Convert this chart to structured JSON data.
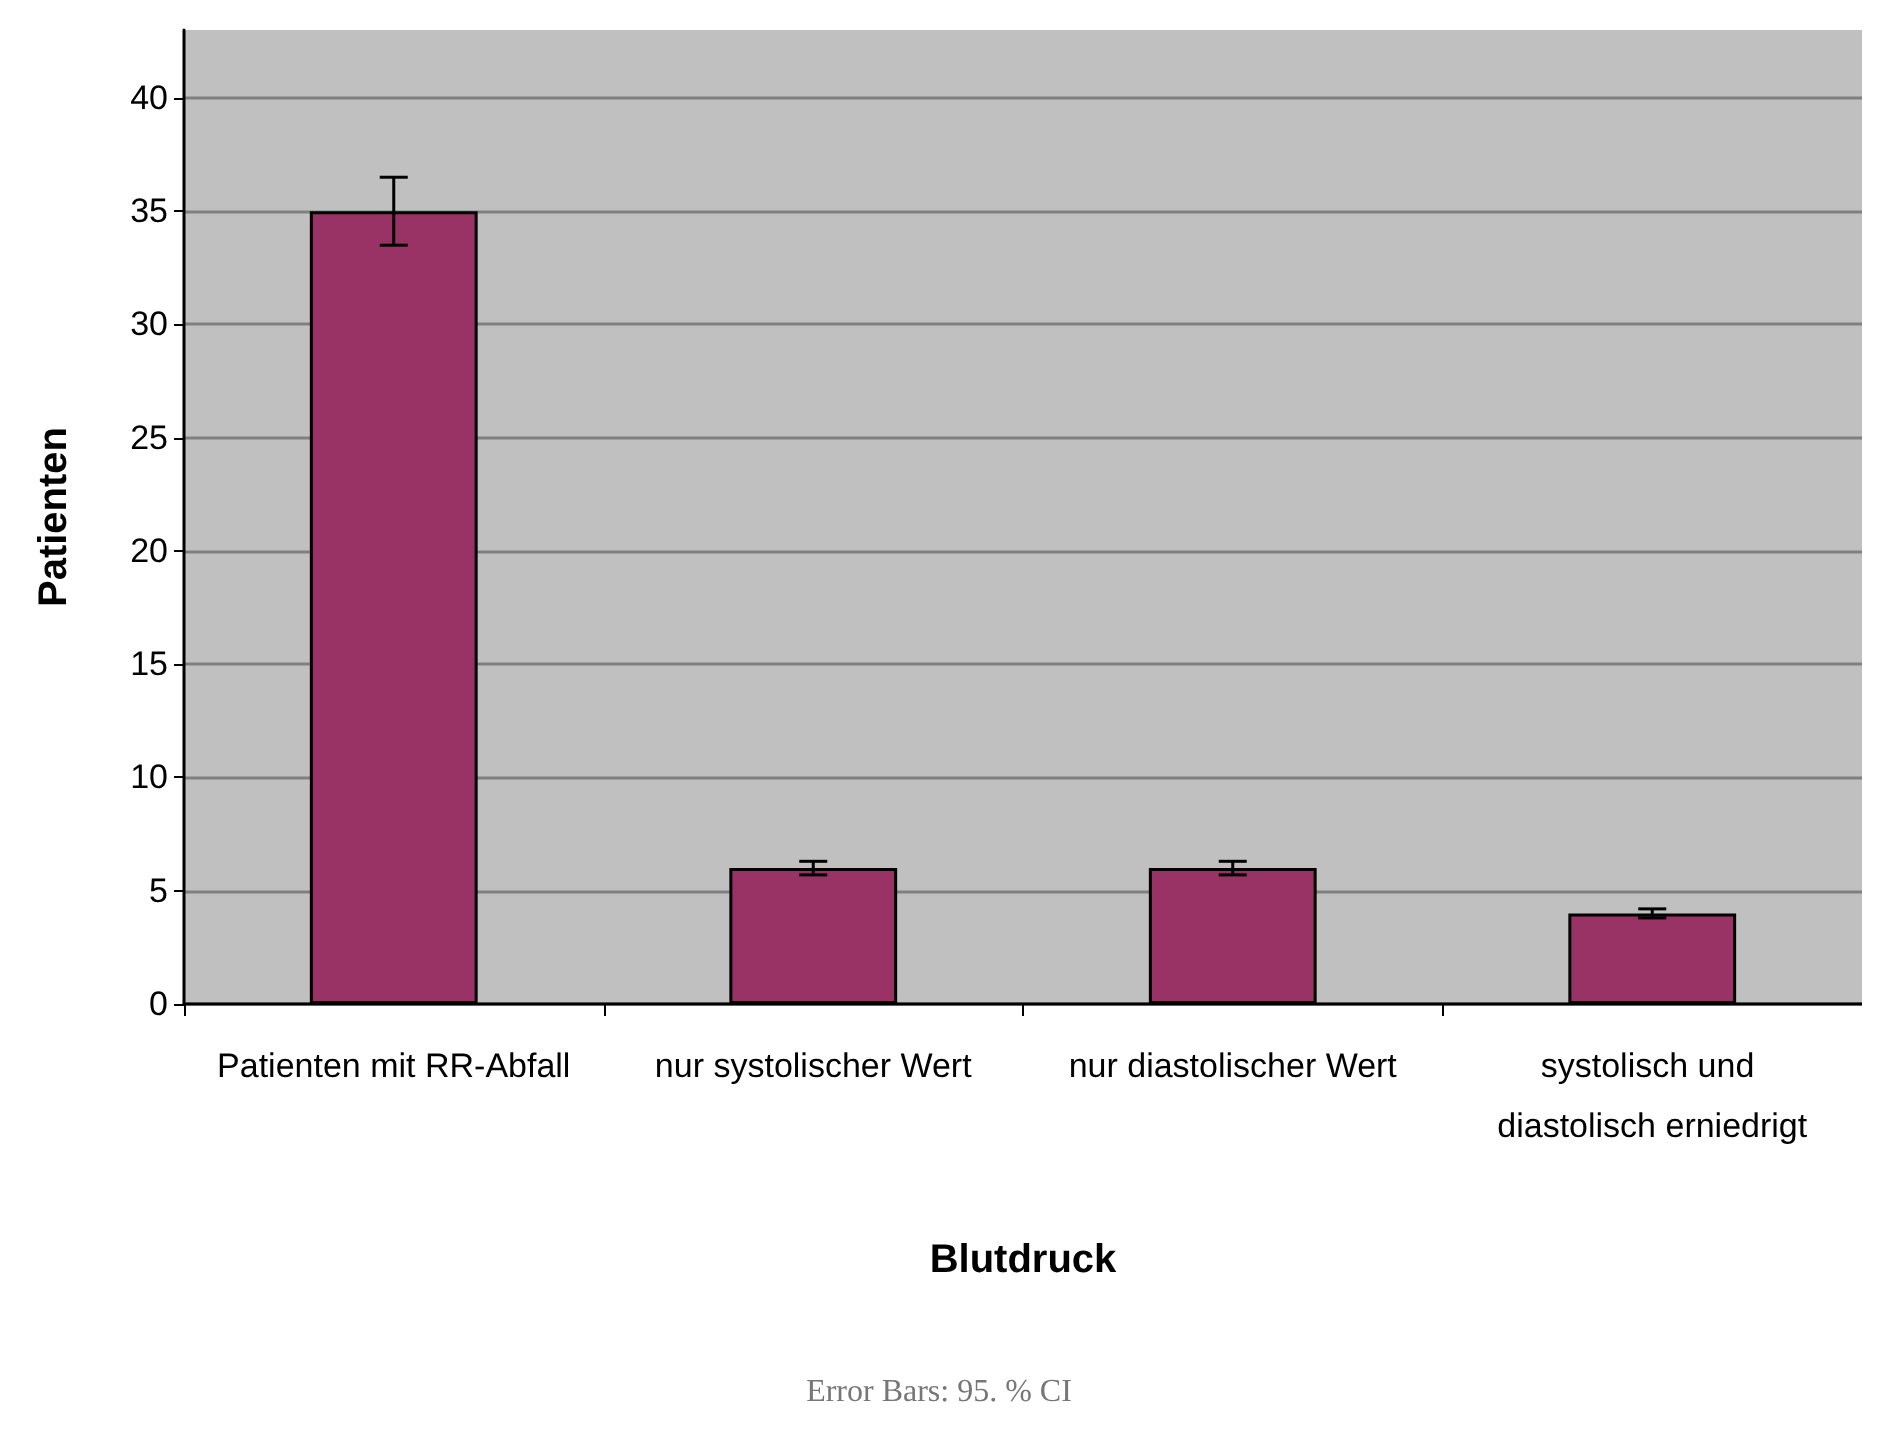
{
  "chart_data": {
    "type": "bar",
    "xlabel": "Blutdruck",
    "ylabel": "Patienten",
    "categories": [
      "Patienten mit RR-Abfall",
      "nur systolischer Wert",
      "nur diastolischer Wert",
      "systolisch und diastolisch erniedrigt"
    ],
    "values": [
      35,
      6,
      6,
      4
    ],
    "color": "#993366",
    "errors": [
      1.5,
      0.3,
      0.3,
      0.2
    ],
    "ylim": [
      0,
      43
    ],
    "yticks": [
      0,
      5,
      10,
      15,
      20,
      25,
      30,
      35,
      40
    ],
    "grid": "y",
    "annotations": [
      "Error Bars: 95. % CI"
    ]
  }
}
